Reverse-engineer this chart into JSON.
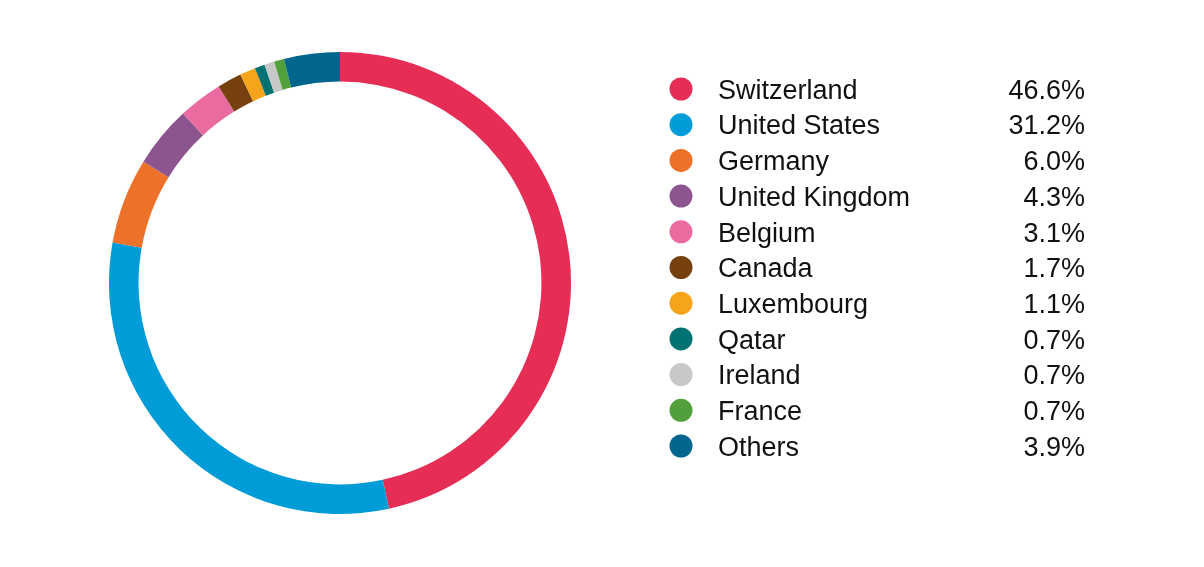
{
  "chart_data": {
    "type": "donut",
    "categories": [
      "Switzerland",
      "United States",
      "Germany",
      "United Kingdom",
      "Belgium",
      "Canada",
      "Luxembourg",
      "Qatar",
      "Ireland",
      "France",
      "Others"
    ],
    "values": [
      46.6,
      31.2,
      6.0,
      4.3,
      3.1,
      1.7,
      1.1,
      0.7,
      0.7,
      0.7,
      3.9
    ],
    "colors": [
      "#e62d56",
      "#009cd8",
      "#ed7128",
      "#8c5590",
      "#ea6ba0",
      "#76400f",
      "#f6a51b",
      "#007272",
      "#c8c8c8",
      "#52a03c",
      "#00668e"
    ],
    "value_labels": [
      "46.6%",
      "31.2%",
      "6.0%",
      "4.3%",
      "3.1%",
      "1.7%",
      "1.1%",
      "0.7%",
      "0.7%",
      "0.7%",
      "3.9%"
    ],
    "legend": "right"
  }
}
